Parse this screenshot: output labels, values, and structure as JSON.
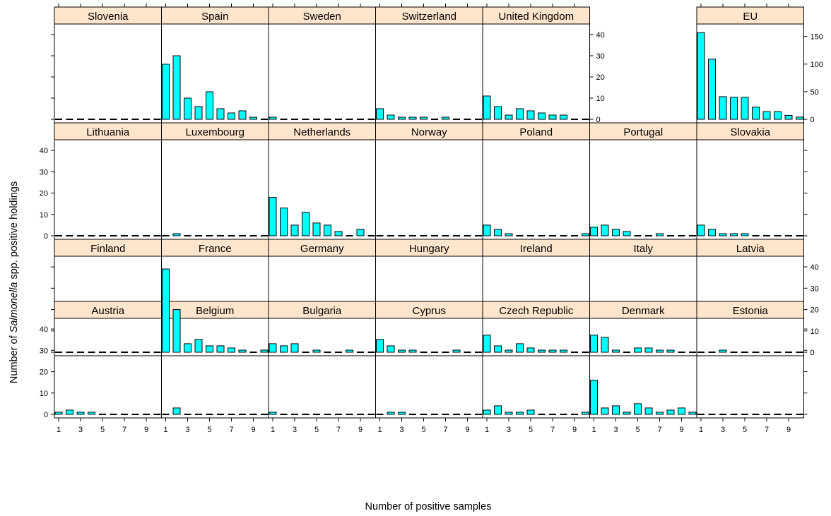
{
  "chart_data": {
    "type": "bar",
    "ylabel": {
      "prefix": "Number of ",
      "italic": "Salmonella",
      "suffix": " spp. positive holdings"
    },
    "xlabel": "Number of positive samples",
    "x": [
      1,
      2,
      3,
      4,
      5,
      6,
      7,
      8,
      9,
      10
    ],
    "x_tick_labels": [
      "1",
      "3",
      "5",
      "7",
      "9"
    ],
    "shared_ylim": [
      0,
      43
    ],
    "shared_y_ticks": [
      0,
      10,
      20,
      30,
      40
    ],
    "eu_ylim": [
      0,
      165
    ],
    "eu_y_ticks": [
      0,
      50,
      100,
      150
    ],
    "colors": {
      "bar": "#00FFFF",
      "strip": "#FFE5CC",
      "frame": "#000000"
    },
    "panels": [
      {
        "name": "Austria",
        "values": [
          1,
          2,
          1,
          1,
          0,
          0,
          0,
          0,
          0,
          0
        ]
      },
      {
        "name": "Belgium",
        "values": [
          0,
          3,
          0,
          0,
          0,
          0,
          0,
          0,
          0,
          0
        ]
      },
      {
        "name": "Bulgaria",
        "values": [
          1,
          0,
          0,
          0,
          0,
          0,
          0,
          0,
          0,
          0
        ]
      },
      {
        "name": "Cyprus",
        "values": [
          0,
          1,
          1,
          0,
          0,
          0,
          0,
          0,
          0,
          0
        ]
      },
      {
        "name": "Czech Republic",
        "values": [
          2,
          4,
          1,
          1,
          2,
          0,
          0,
          0,
          0,
          1
        ]
      },
      {
        "name": "Denmark",
        "values": [
          16,
          3,
          4,
          1,
          5,
          3,
          1,
          2,
          3,
          1
        ]
      },
      {
        "name": "Estonia",
        "values": [
          0,
          0,
          0,
          0,
          0,
          0,
          0,
          0,
          0,
          0
        ]
      },
      {
        "name": "Finland",
        "values": [
          0,
          0,
          0,
          0,
          0,
          0,
          0,
          0,
          0,
          0
        ]
      },
      {
        "name": "France",
        "values": [
          39,
          20,
          4,
          6,
          3,
          3,
          2,
          1,
          0,
          1
        ]
      },
      {
        "name": "Germany",
        "values": [
          4,
          3,
          4,
          0,
          1,
          0,
          0,
          1,
          0,
          0
        ]
      },
      {
        "name": "Hungary",
        "values": [
          6,
          3,
          1,
          1,
          0,
          0,
          0,
          1,
          0,
          0
        ]
      },
      {
        "name": "Ireland",
        "values": [
          8,
          3,
          1,
          4,
          2,
          1,
          1,
          1,
          0,
          0
        ]
      },
      {
        "name": "Italy",
        "values": [
          8,
          7,
          1,
          0,
          2,
          2,
          1,
          1,
          0,
          0
        ]
      },
      {
        "name": "Latvia",
        "values": [
          0,
          0,
          1,
          0,
          0,
          0,
          0,
          0,
          0,
          0
        ]
      },
      {
        "name": "Lithuania",
        "values": [
          0,
          0,
          0,
          0,
          0,
          0,
          0,
          0,
          0,
          0
        ]
      },
      {
        "name": "Luxembourg",
        "values": [
          0,
          1,
          0,
          0,
          0,
          0,
          0,
          0,
          0,
          0
        ]
      },
      {
        "name": "Netherlands",
        "values": [
          18,
          13,
          5,
          11,
          6,
          5,
          2,
          0,
          3,
          0
        ]
      },
      {
        "name": "Norway",
        "values": [
          0,
          0,
          0,
          0,
          0,
          0,
          0,
          0,
          0,
          0
        ]
      },
      {
        "name": "Poland",
        "values": [
          5,
          3,
          1,
          0,
          0,
          0,
          0,
          0,
          0,
          1
        ]
      },
      {
        "name": "Portugal",
        "values": [
          4,
          5,
          3,
          2,
          0,
          0,
          1,
          0,
          0,
          0
        ]
      },
      {
        "name": "Slovakia",
        "values": [
          5,
          3,
          1,
          1,
          1,
          0,
          0,
          0,
          0,
          0
        ]
      },
      {
        "name": "Slovenia",
        "values": [
          0,
          0,
          0,
          0,
          0,
          0,
          0,
          0,
          0,
          0
        ]
      },
      {
        "name": "Spain",
        "values": [
          26,
          30,
          10,
          6,
          13,
          5,
          3,
          4,
          1,
          0
        ]
      },
      {
        "name": "Sweden",
        "values": [
          1,
          0,
          0,
          0,
          0,
          0,
          0,
          0,
          0,
          0
        ]
      },
      {
        "name": "Switzerland",
        "values": [
          5,
          2,
          1,
          1,
          1,
          0,
          1,
          0,
          0,
          0
        ]
      },
      {
        "name": "United Kingdom",
        "values": [
          11,
          6,
          2,
          5,
          4,
          3,
          2,
          2,
          0,
          0
        ]
      },
      {
        "name": "EU",
        "values": [
          157,
          109,
          41,
          40,
          40,
          22,
          14,
          14,
          7,
          4
        ],
        "own_scale": true
      }
    ]
  }
}
